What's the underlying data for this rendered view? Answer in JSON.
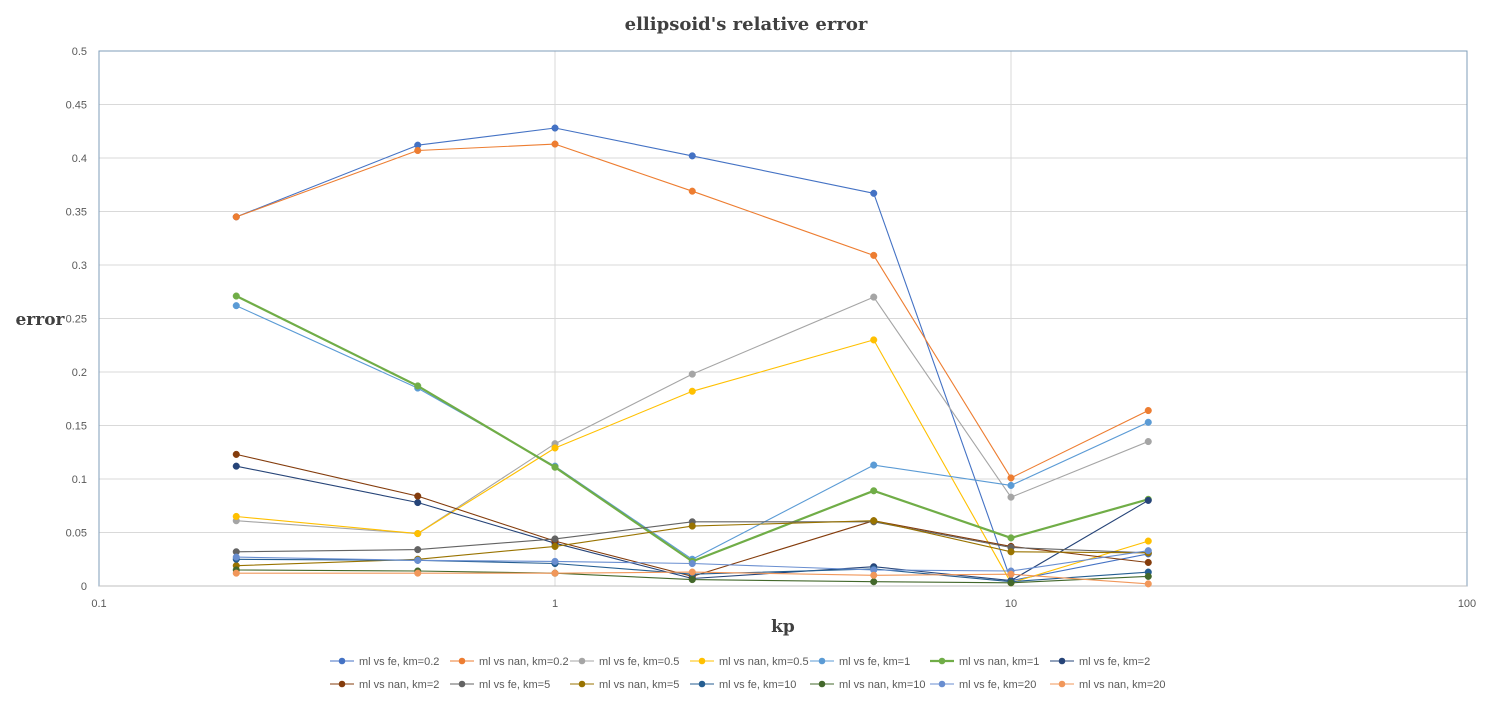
{
  "chart_data": {
    "type": "line",
    "title": "ellipsoid's  relative  error",
    "xlabel": "kp",
    "ylabel": "error",
    "x_scale": "log",
    "xlim": [
      0.1,
      100
    ],
    "ylim": [
      0,
      0.5
    ],
    "x_ticks": [
      "0.1",
      "1",
      "10",
      "100"
    ],
    "y_ticks": [
      "0",
      "0.05",
      "0.1",
      "0.15",
      "0.2",
      "0.25",
      "0.3",
      "0.35",
      "0.4",
      "0.45",
      "0.5"
    ],
    "grid": "on",
    "legend_position": "bottom",
    "x": [
      0.2,
      0.5,
      1,
      2,
      5,
      10,
      20
    ],
    "series": [
      {
        "name": "ml vs fe, km=0.2",
        "color": "#4472C4",
        "values": [
          0.345,
          0.412,
          0.428,
          0.402,
          0.367,
          0.005,
          0.03
        ]
      },
      {
        "name": "ml vs nan, km=0.2",
        "color": "#ED7D31",
        "values": [
          0.345,
          0.407,
          0.413,
          0.369,
          0.309,
          0.101,
          0.164
        ]
      },
      {
        "name": "ml vs fe, km=0.5",
        "color": "#A5A5A5",
        "values": [
          0.061,
          0.049,
          0.133,
          0.198,
          0.27,
          0.083,
          0.135
        ]
      },
      {
        "name": "ml vs nan, km=0.5",
        "color": "#FFC000",
        "values": [
          0.065,
          0.049,
          0.129,
          0.182,
          0.23,
          0.003,
          0.042
        ]
      },
      {
        "name": "ml vs fe, km=1",
        "color": "#5B9BD5",
        "values": [
          0.262,
          0.185,
          0.112,
          0.025,
          0.113,
          0.094,
          0.153
        ]
      },
      {
        "name": "ml vs nan, km=1",
        "color": "#70AD47",
        "values": [
          0.271,
          0.187,
          0.111,
          0.023,
          0.089,
          0.045,
          0.081
        ]
      },
      {
        "name": "ml vs fe, km=2",
        "color": "#264478",
        "values": [
          0.112,
          0.078,
          0.04,
          0.007,
          0.018,
          0.005,
          0.08
        ]
      },
      {
        "name": "ml vs nan, km=2",
        "color": "#843C0C",
        "values": [
          0.123,
          0.084,
          0.042,
          0.009,
          0.061,
          0.037,
          0.022
        ]
      },
      {
        "name": "ml vs fe, km=5",
        "color": "#636363",
        "values": [
          0.032,
          0.034,
          0.044,
          0.06,
          0.06,
          0.036,
          0.031
        ]
      },
      {
        "name": "ml vs nan, km=5",
        "color": "#997300",
        "values": [
          0.019,
          0.025,
          0.037,
          0.056,
          0.061,
          0.032,
          0.031
        ]
      },
      {
        "name": "ml vs fe, km=10",
        "color": "#255E91",
        "values": [
          0.025,
          0.024,
          0.021,
          0.011,
          0.016,
          0.004,
          0.013
        ]
      },
      {
        "name": "ml vs nan, km=10",
        "color": "#43682B",
        "values": [
          0.015,
          0.014,
          0.012,
          0.006,
          0.004,
          0.003,
          0.009
        ]
      },
      {
        "name": "ml vs fe, km=20",
        "color": "#698ED0",
        "values": [
          0.027,
          0.024,
          0.023,
          0.021,
          0.015,
          0.014,
          0.033
        ]
      },
      {
        "name": "ml vs nan, km=20",
        "color": "#F1975A",
        "values": [
          0.012,
          0.012,
          0.012,
          0.013,
          0.01,
          0.011,
          0.002
        ]
      }
    ]
  }
}
